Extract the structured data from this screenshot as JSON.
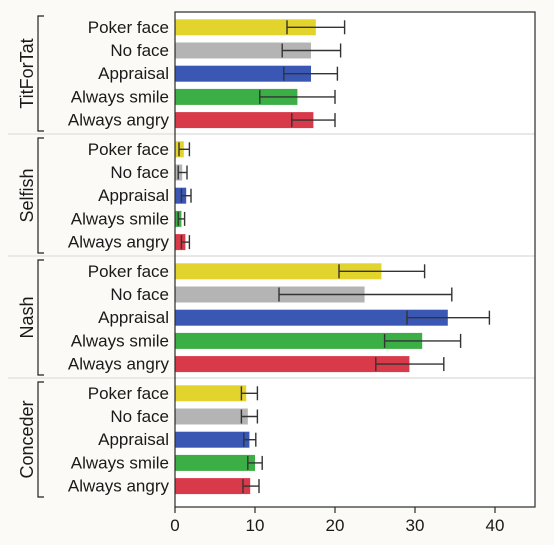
{
  "chart_data": {
    "type": "bar",
    "orientation": "horizontal",
    "grouped": true,
    "xlim": [
      0,
      45
    ],
    "x_ticks": [
      "0",
      "10",
      "20",
      "30",
      "40"
    ],
    "x_tick_values": [
      0,
      10,
      20,
      30,
      40
    ],
    "grid": false,
    "categories": [
      "Poker face",
      "No face",
      "Appraisal",
      "Always smile",
      "Always angry"
    ],
    "colors": {
      "Poker face": "#e3d32d",
      "No face": "#b4b4b4",
      "Appraisal": "#3a57b3",
      "Always smile": "#3bae45",
      "Always angry": "#d93a4a"
    },
    "groups": [
      {
        "name": "TitForTat",
        "values": [
          17.6,
          17.0,
          17.0,
          15.3,
          17.3
        ],
        "error": [
          [
            14.0,
            21.2
          ],
          [
            13.4,
            20.7
          ],
          [
            13.6,
            20.3
          ],
          [
            10.6,
            20.0
          ],
          [
            14.6,
            20.0
          ]
        ]
      },
      {
        "name": "Selfish",
        "values": [
          1.1,
          0.9,
          1.4,
          0.8,
          1.3
        ],
        "error": [
          [
            0.5,
            1.8
          ],
          [
            0.4,
            1.5
          ],
          [
            0.8,
            2.0
          ],
          [
            0.4,
            1.2
          ],
          [
            0.8,
            1.8
          ]
        ]
      },
      {
        "name": "Nash",
        "values": [
          25.8,
          23.7,
          34.1,
          30.9,
          29.3
        ],
        "error": [
          [
            20.5,
            31.2
          ],
          [
            13.0,
            34.6
          ],
          [
            29.0,
            39.3
          ],
          [
            26.2,
            35.7
          ],
          [
            25.1,
            33.6
          ]
        ]
      },
      {
        "name": "Conceder",
        "values": [
          8.9,
          9.1,
          9.3,
          10.0,
          9.4
        ],
        "error": [
          [
            8.3,
            10.3
          ],
          [
            8.3,
            10.3
          ],
          [
            8.6,
            10.1
          ],
          [
            9.1,
            10.9
          ],
          [
            8.5,
            10.5
          ]
        ]
      }
    ]
  }
}
